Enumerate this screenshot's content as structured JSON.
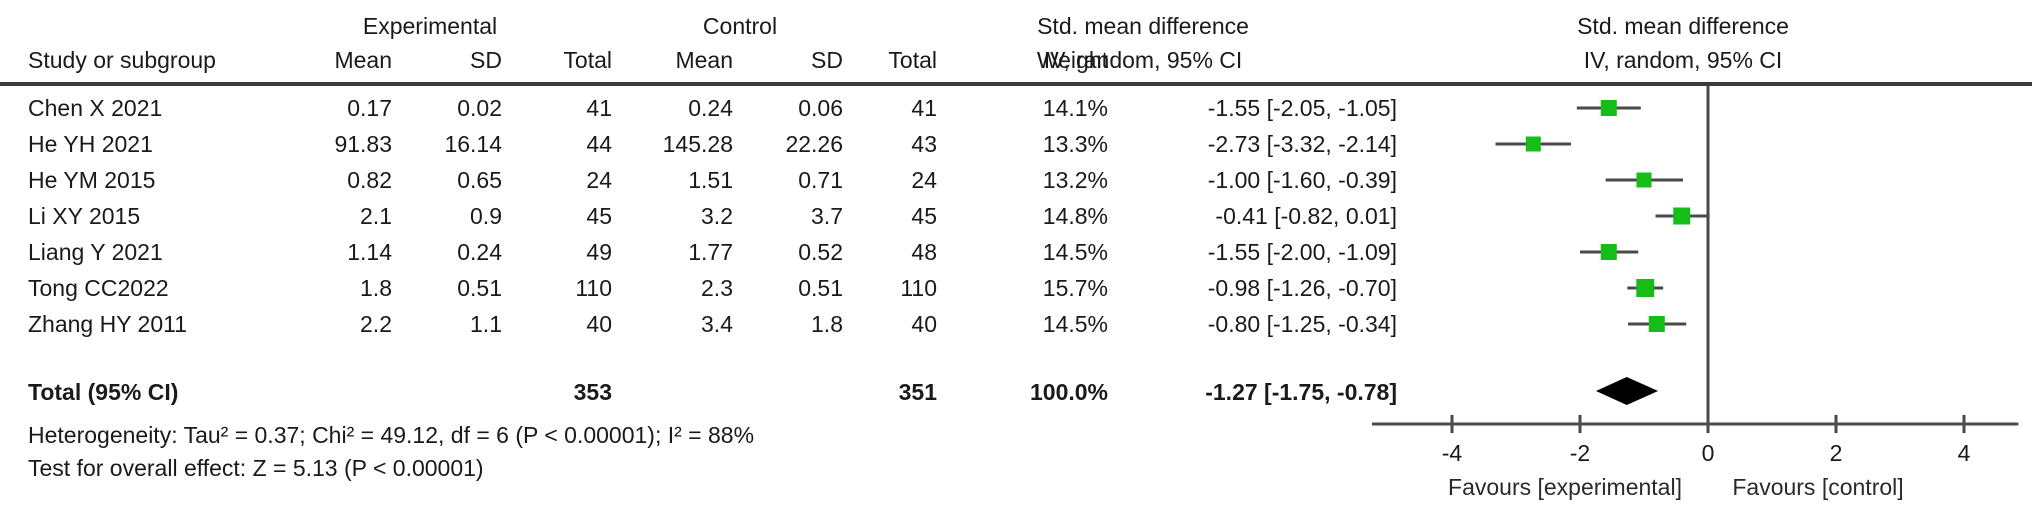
{
  "chart_data": {
    "type": "scatter",
    "subtype": "forest_plot",
    "group_headers": {
      "experimental": "Experimental",
      "control": "Control",
      "smd_left": "Std. mean difference",
      "smd_right": "Std. mean difference"
    },
    "column_headers": {
      "study": "Study or subgroup",
      "mean": "Mean",
      "sd": "SD",
      "total": "Total",
      "weight": "Weight",
      "iv": "IV, random, 95% CI"
    },
    "studies": [
      {
        "study": "Chen X 2021",
        "mean_e": "0.17",
        "sd_e": "0.02",
        "total_e": "41",
        "mean_c": "0.24",
        "sd_c": "0.06",
        "total_c": "41",
        "weight": "14.1%",
        "ci_text": "-1.55 [-2.05, -1.05]",
        "smd": -1.55,
        "ci_low": -2.05,
        "ci_high": -1.05,
        "weight_pct": 14.1
      },
      {
        "study": "He YH 2021",
        "mean_e": "91.83",
        "sd_e": "16.14",
        "total_e": "44",
        "mean_c": "145.28",
        "sd_c": "22.26",
        "total_c": "43",
        "weight": "13.3%",
        "ci_text": "-2.73 [-3.32, -2.14]",
        "smd": -2.73,
        "ci_low": -3.32,
        "ci_high": -2.14,
        "weight_pct": 13.3
      },
      {
        "study": "He YM 2015",
        "mean_e": "0.82",
        "sd_e": "0.65",
        "total_e": "24",
        "mean_c": "1.51",
        "sd_c": "0.71",
        "total_c": "24",
        "weight": "13.2%",
        "ci_text": "-1.00 [-1.60, -0.39]",
        "smd": -1.0,
        "ci_low": -1.6,
        "ci_high": -0.39,
        "weight_pct": 13.2
      },
      {
        "study": "Li XY 2015",
        "mean_e": "2.1",
        "sd_e": "0.9",
        "total_e": "45",
        "mean_c": "3.2",
        "sd_c": "3.7",
        "total_c": "45",
        "weight": "14.8%",
        "ci_text": "-0.41 [-0.82, 0.01]",
        "smd": -0.41,
        "ci_low": -0.82,
        "ci_high": 0.01,
        "weight_pct": 14.8
      },
      {
        "study": "Liang Y 2021",
        "mean_e": "1.14",
        "sd_e": "0.24",
        "total_e": "49",
        "mean_c": "1.77",
        "sd_c": "0.52",
        "total_c": "48",
        "weight": "14.5%",
        "ci_text": "-1.55 [-2.00, -1.09]",
        "smd": -1.55,
        "ci_low": -2.0,
        "ci_high": -1.09,
        "weight_pct": 14.5
      },
      {
        "study": "Tong CC2022",
        "mean_e": "1.8",
        "sd_e": "0.51",
        "total_e": "110",
        "mean_c": "2.3",
        "sd_c": "0.51",
        "total_c": "110",
        "weight": "15.7%",
        "ci_text": "-0.98 [-1.26, -0.70]",
        "smd": -0.98,
        "ci_low": -1.26,
        "ci_high": -0.7,
        "weight_pct": 15.7
      },
      {
        "study": "Zhang HY 2011",
        "mean_e": "2.2",
        "sd_e": "1.1",
        "total_e": "40",
        "mean_c": "3.4",
        "sd_c": "1.8",
        "total_c": "40",
        "weight": "14.5%",
        "ci_text": "-0.80 [-1.25, -0.34]",
        "smd": -0.8,
        "ci_low": -1.25,
        "ci_high": -0.34,
        "weight_pct": 14.5
      }
    ],
    "total": {
      "label": "Total (95% CI)",
      "total_e": "353",
      "total_c": "351",
      "weight": "100.0%",
      "ci_text": "-1.27 [-1.75, -0.78]",
      "smd": -1.27,
      "ci_low": -1.75,
      "ci_high": -0.78
    },
    "footnotes": {
      "heterogeneity": "Heterogeneity: Tau² = 0.37; Chi² = 49.12, df = 6 (P < 0.00001); I² = 88%",
      "overall_effect": "Test for overall effect: Z = 5.13 (P < 0.00001)"
    },
    "axis": {
      "ticks": [
        -4,
        -2,
        0,
        2,
        4
      ],
      "xlim": [
        -5.25,
        4.85
      ],
      "favours_left": "Favours [experimental]",
      "favours_right": "Favours [control]"
    },
    "colors": {
      "marker": "#17bd17",
      "ci_line": "#4a4a4a",
      "axis": "#4a4a4a",
      "divider": "#3b3b3b",
      "diamond": "#000000",
      "text": "#1a1a1a"
    }
  }
}
